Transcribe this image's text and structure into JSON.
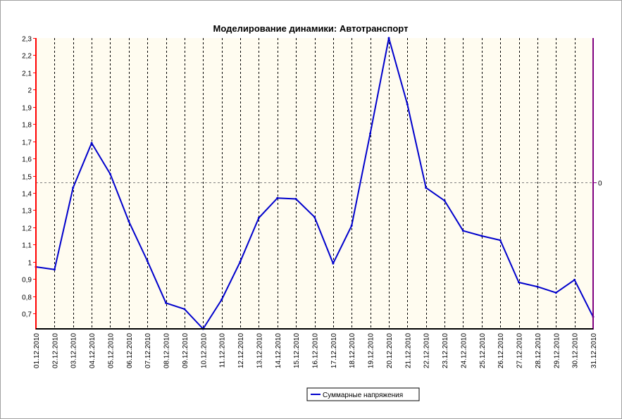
{
  "chart_data": {
    "type": "line",
    "title": "Моделирование динамики: Автотранспорт",
    "xlabel": "",
    "ylabel": "",
    "ylim": [
      0.61,
      2.3
    ],
    "y_ticks": [
      "0,7",
      "0,8",
      "0,9",
      "1",
      "1,1",
      "1,2",
      "1,3",
      "1,4",
      "1,5",
      "1,6",
      "1,7",
      "1,8",
      "1,9",
      "2",
      "2,1",
      "2,2",
      "2,3"
    ],
    "y_tick_values": [
      0.7,
      0.8,
      0.9,
      1.0,
      1.1,
      1.2,
      1.3,
      1.4,
      1.5,
      1.6,
      1.7,
      1.8,
      1.9,
      2.0,
      2.1,
      2.2,
      2.3
    ],
    "categories": [
      "01.12.2010",
      "02.12.2010",
      "03.12.2010",
      "04.12.2010",
      "05.12.2010",
      "06.12.2010",
      "07.12.2010",
      "08.12.2010",
      "09.12.2010",
      "10.12.2010",
      "11.12.2010",
      "12.12.2010",
      "13.12.2010",
      "14.12.2010",
      "15.12.2010",
      "16.12.2010",
      "17.12.2010",
      "18.12.2010",
      "19.12.2010",
      "20.12.2010",
      "21.12.2010",
      "22.12.2010",
      "23.12.2010",
      "24.12.2010",
      "25.12.2010",
      "26.12.2010",
      "27.12.2010",
      "28.12.2010",
      "29.12.2010",
      "30.12.2010",
      "31.12.2010"
    ],
    "series": [
      {
        "name": "Суммарные напряжения",
        "color": "#0000cc",
        "values": [
          0.97,
          0.955,
          1.43,
          1.69,
          1.51,
          1.235,
          1.005,
          0.76,
          0.725,
          0.61,
          0.78,
          1.0,
          1.255,
          1.37,
          1.365,
          1.26,
          0.99,
          1.21,
          1.745,
          2.3,
          1.915,
          1.43,
          1.355,
          1.18,
          1.15,
          1.125,
          0.88,
          0.855,
          0.82,
          0.895,
          0.68
        ]
      }
    ],
    "secondary_axis": {
      "tick_label": "0",
      "reference_value": 1.46
    },
    "grid": true,
    "legend_position": "bottom-center",
    "colors": {
      "plot_background": "#fffcf0",
      "left_axis": "#ff0000",
      "right_axis": "#800080",
      "bottom_axis": "#000000",
      "grid": "#000000",
      "reference_line": "#808080"
    }
  }
}
